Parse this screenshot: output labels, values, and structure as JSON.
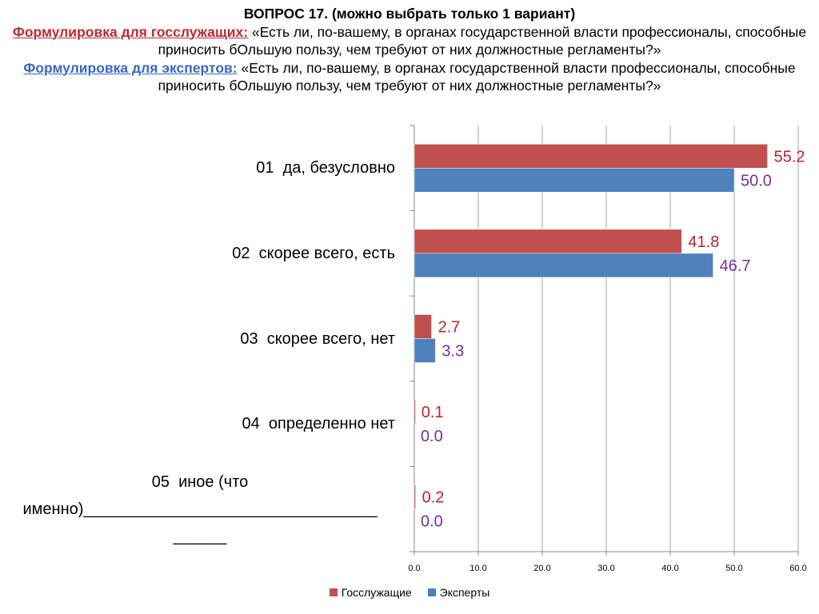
{
  "header": {
    "question": "ВОПРОС 17. (можно выбрать только 1 вариант)",
    "civil_label": "Формулировка для госслужащих:",
    "civil_text": " «Есть ли, по-вашему, в органах государственной власти профессионалы, способные приносить бОльшую пользу, чем требуют от них должностные регламенты?»",
    "expert_label": "Формулировка для экспертов:",
    "expert_text": " «Есть ли, по-вашему, в органах государственной власти профессионалы, способные приносить бОльшую пользу, чем требуют от них должностные регламенты?»"
  },
  "chart_data": {
    "type": "bar",
    "orientation": "horizontal",
    "categories": [
      "01  да, безусловно",
      "02  скорее всего, есть",
      "03  скорее всего, нет",
      "04  определенно нет",
      "05  иное (что\nименно)_________________________________\n______"
    ],
    "series": [
      {
        "name": "Госслужащие",
        "color": "#c0504d",
        "label_color": "#c0202a",
        "values": [
          55.2,
          41.8,
          2.7,
          0.1,
          0.2
        ],
        "labels": [
          "55.2",
          "41.8",
          "2.7",
          "0.1",
          "0.2"
        ]
      },
      {
        "name": "Эксперты",
        "color": "#4f81bd",
        "label_color": "#7030a0",
        "values": [
          50.0,
          46.7,
          3.3,
          0.0,
          0.0
        ],
        "labels": [
          "50.0",
          "46.7",
          "3.3",
          "0.0",
          "0.0"
        ]
      }
    ],
    "xlim": [
      0,
      60
    ],
    "xticks": [
      "0.0",
      "10.0",
      "20.0",
      "30.0",
      "40.0",
      "50.0",
      "60.0"
    ],
    "grid": true,
    "legend_position": "bottom",
    "title": "",
    "xlabel": "",
    "ylabel": ""
  }
}
